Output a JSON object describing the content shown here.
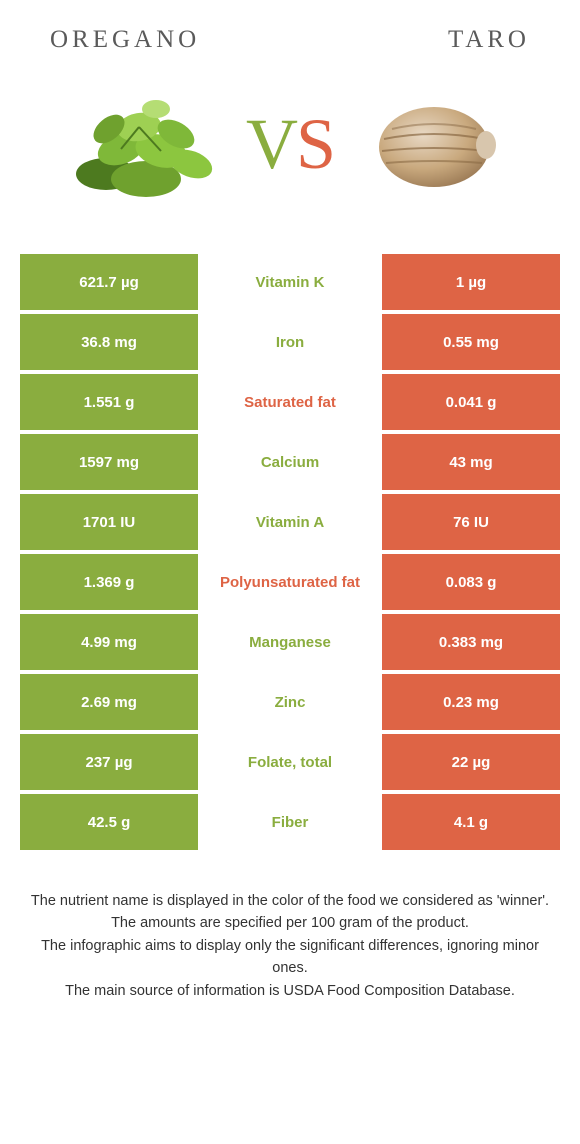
{
  "colors": {
    "left": "#8aad3f",
    "right": "#de6445",
    "mid_bg": "#ffffff"
  },
  "header": {
    "left_title": "Oregano",
    "right_title": "Taro",
    "vs_v": "V",
    "vs_s": "S"
  },
  "rows": [
    {
      "left": "621.7 µg",
      "label": "Vitamin K",
      "label_color": "#8aad3f",
      "right": "1 µg"
    },
    {
      "left": "36.8 mg",
      "label": "Iron",
      "label_color": "#8aad3f",
      "right": "0.55 mg"
    },
    {
      "left": "1.551 g",
      "label": "Saturated fat",
      "label_color": "#de6445",
      "right": "0.041 g"
    },
    {
      "left": "1597 mg",
      "label": "Calcium",
      "label_color": "#8aad3f",
      "right": "43 mg"
    },
    {
      "left": "1701 IU",
      "label": "Vitamin A",
      "label_color": "#8aad3f",
      "right": "76 IU"
    },
    {
      "left": "1.369 g",
      "label": "Polyunsaturated fat",
      "label_color": "#de6445",
      "right": "0.083 g"
    },
    {
      "left": "4.99 mg",
      "label": "Manganese",
      "label_color": "#8aad3f",
      "right": "0.383 mg"
    },
    {
      "left": "2.69 mg",
      "label": "Zinc",
      "label_color": "#8aad3f",
      "right": "0.23 mg"
    },
    {
      "left": "237 µg",
      "label": "Folate, total",
      "label_color": "#8aad3f",
      "right": "22 µg"
    },
    {
      "left": "42.5 g",
      "label": "Fiber",
      "label_color": "#8aad3f",
      "right": "4.1 g"
    }
  ],
  "footer": {
    "line1": "The nutrient name is displayed in the color of the food we considered as 'winner'.",
    "line2": "The amounts are specified per 100 gram of the product.",
    "line3": "The infographic aims to display only the significant differences, ignoring minor ones.",
    "line4": "The main source of information is USDA Food Composition Database."
  }
}
